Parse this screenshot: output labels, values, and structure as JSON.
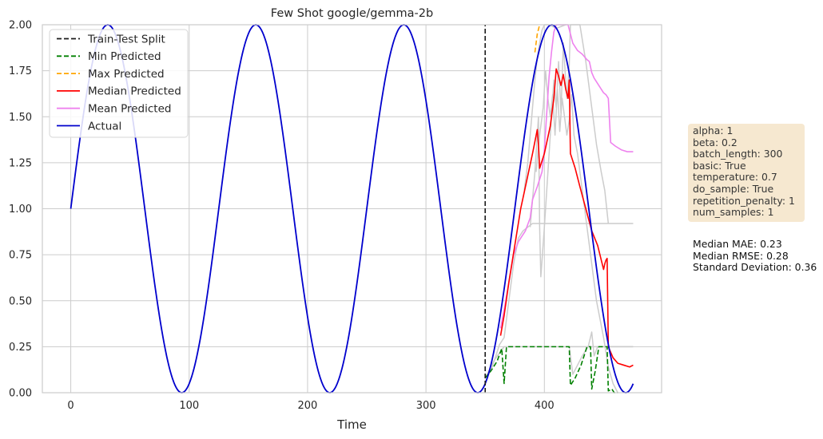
{
  "chart_data": {
    "type": "line",
    "title": "Few Shot google/gemma-2b",
    "xlabel": "Time",
    "ylabel": "",
    "xlim": [
      -24,
      499
    ],
    "ylim": [
      0.0,
      2.0
    ],
    "xticks": [
      0,
      100,
      200,
      300,
      400
    ],
    "yticks": [
      0.0,
      0.25,
      0.5,
      0.75,
      1.0,
      1.25,
      1.5,
      1.75,
      2.0
    ],
    "xtick_labels": [
      "0",
      "100",
      "200",
      "300",
      "400"
    ],
    "ytick_labels": [
      "0.00",
      "0.25",
      "0.50",
      "0.75",
      "1.00",
      "1.25",
      "1.50",
      "1.75",
      "2.00"
    ],
    "grid": true,
    "legend_position": "top-left",
    "train_test_split": 350,
    "actual": {
      "period": 125,
      "amplitude": 1,
      "offset": 1,
      "start": 0,
      "end": 475
    },
    "series": [
      {
        "name": "Train-Test Split",
        "color": "#1a1a1a",
        "style": "dashed",
        "points": [
          [
            350,
            0
          ],
          [
            350,
            2
          ]
        ]
      },
      {
        "name": "Min Predicted",
        "color": "#008000",
        "style": "dashed",
        "points": [
          [
            350,
            0.08
          ],
          [
            355,
            0.12
          ],
          [
            360,
            0.17
          ],
          [
            364,
            0.24
          ],
          [
            366,
            0.05
          ],
          [
            368,
            0.25
          ],
          [
            376,
            0.25
          ],
          [
            386,
            0.25
          ],
          [
            396,
            0.25
          ],
          [
            406,
            0.25
          ],
          [
            416,
            0.25
          ],
          [
            421,
            0.25
          ],
          [
            422,
            0.04
          ],
          [
            426,
            0.08
          ],
          [
            431,
            0.15
          ],
          [
            436,
            0.25
          ],
          [
            439,
            0.25
          ],
          [
            440,
            0.02
          ],
          [
            443,
            0.12
          ],
          [
            446,
            0.25
          ],
          [
            451,
            0.25
          ],
          [
            453,
            0.25
          ],
          [
            454,
            0.01
          ],
          [
            457,
            0.02
          ],
          [
            459,
            0.0
          ],
          [
            462,
            0.0
          ]
        ]
      },
      {
        "name": "Max Predicted",
        "color": "#ffa500",
        "style": "dashed",
        "points": [
          [
            392,
            1.85
          ],
          [
            394,
            1.95
          ],
          [
            396,
            2.0
          ]
        ]
      },
      {
        "name": "Median Predicted",
        "color": "#ff0000",
        "style": "solid",
        "points": [
          [
            363,
            0.31
          ],
          [
            366,
            0.42
          ],
          [
            370,
            0.6
          ],
          [
            375,
            0.8
          ],
          [
            380,
            1.0
          ],
          [
            385,
            1.15
          ],
          [
            390,
            1.3
          ],
          [
            394,
            1.43
          ],
          [
            395,
            1.35
          ],
          [
            396,
            1.22
          ],
          [
            400,
            1.3
          ],
          [
            405,
            1.45
          ],
          [
            408,
            1.6
          ],
          [
            410,
            1.76
          ],
          [
            412,
            1.72
          ],
          [
            414,
            1.67
          ],
          [
            416,
            1.73
          ],
          [
            418,
            1.65
          ],
          [
            420,
            1.6
          ],
          [
            421,
            1.7
          ],
          [
            422,
            1.3
          ],
          [
            426,
            1.22
          ],
          [
            430,
            1.12
          ],
          [
            435,
            1.0
          ],
          [
            440,
            0.88
          ],
          [
            445,
            0.8
          ],
          [
            450,
            0.67
          ],
          [
            451,
            0.7
          ],
          [
            452,
            0.72
          ],
          [
            453,
            0.73
          ],
          [
            454,
            0.25
          ],
          [
            458,
            0.19
          ],
          [
            462,
            0.16
          ],
          [
            467,
            0.15
          ],
          [
            472,
            0.14
          ],
          [
            475,
            0.15
          ]
        ]
      },
      {
        "name": "Mean Predicted",
        "color": "#ee82ee",
        "style": "solid",
        "points": [
          [
            363,
            0.35
          ],
          [
            366,
            0.45
          ],
          [
            370,
            0.6
          ],
          [
            374,
            0.75
          ],
          [
            378,
            0.82
          ],
          [
            384,
            0.88
          ],
          [
            388,
            0.95
          ],
          [
            390,
            1.05
          ],
          [
            394,
            1.12
          ],
          [
            398,
            1.2
          ],
          [
            400,
            1.32
          ],
          [
            402,
            1.52
          ],
          [
            404,
            1.72
          ],
          [
            406,
            1.85
          ],
          [
            408,
            1.96
          ],
          [
            410,
            2.0
          ],
          [
            420,
            2.0
          ],
          [
            424,
            1.9
          ],
          [
            428,
            1.86
          ],
          [
            432,
            1.84
          ],
          [
            436,
            1.81
          ],
          [
            438,
            1.8
          ],
          [
            440,
            1.74
          ],
          [
            442,
            1.71
          ],
          [
            446,
            1.67
          ],
          [
            450,
            1.63
          ],
          [
            452,
            1.62
          ],
          [
            454,
            1.6
          ],
          [
            456,
            1.36
          ],
          [
            460,
            1.34
          ],
          [
            465,
            1.32
          ],
          [
            470,
            1.31
          ],
          [
            475,
            1.31
          ]
        ]
      },
      {
        "name": "Actual",
        "color": "#0000cd",
        "style": "solid",
        "from_actual": true
      }
    ],
    "sample_series": [
      {
        "name": "",
        "color": "#cccccc",
        "points": [
          [
            350,
            0.06
          ],
          [
            356,
            0.14
          ],
          [
            362,
            0.26
          ],
          [
            366,
            0.3
          ],
          [
            370,
            0.5
          ],
          [
            374,
            0.7
          ],
          [
            378,
            0.84
          ],
          [
            382,
            0.88
          ],
          [
            386,
            0.9
          ],
          [
            390,
            0.92
          ],
          [
            400,
            0.92
          ],
          [
            420,
            0.92
          ],
          [
            440,
            0.92
          ],
          [
            460,
            0.92
          ],
          [
            475,
            0.92
          ]
        ]
      },
      {
        "name": "",
        "color": "#cccccc",
        "points": [
          [
            350,
            0.08
          ],
          [
            358,
            0.18
          ],
          [
            366,
            0.25
          ],
          [
            370,
            0.25
          ],
          [
            380,
            0.25
          ],
          [
            400,
            0.25
          ],
          [
            420,
            0.25
          ],
          [
            440,
            0.25
          ],
          [
            460,
            0.25
          ],
          [
            475,
            0.25
          ]
        ]
      },
      {
        "name": "",
        "color": "#cccccc",
        "points": [
          [
            388,
            0.9
          ],
          [
            392,
            1.2
          ],
          [
            395,
            1.5
          ],
          [
            396,
            0.9
          ],
          [
            397,
            0.63
          ],
          [
            400,
            0.9
          ],
          [
            403,
            1.2
          ],
          [
            406,
            1.5
          ],
          [
            408,
            1.7
          ],
          [
            410,
            1.55
          ],
          [
            412,
            1.8
          ],
          [
            414,
            1.52
          ],
          [
            416,
            1.9
          ],
          [
            419,
            1.6
          ],
          [
            421,
            1.78
          ],
          [
            422,
            2.0
          ],
          [
            430,
            2.0
          ],
          [
            435,
            1.8
          ],
          [
            440,
            1.55
          ],
          [
            444,
            1.35
          ],
          [
            448,
            1.2
          ],
          [
            451,
            1.1
          ],
          [
            454,
            0.92
          ]
        ]
      },
      {
        "name": "",
        "color": "#cccccc",
        "points": [
          [
            393,
            1.2
          ],
          [
            396,
            1.4
          ],
          [
            399,
            1.55
          ],
          [
            401,
            1.75
          ],
          [
            403,
            1.6
          ],
          [
            405,
            1.5
          ],
          [
            407,
            1.62
          ],
          [
            409,
            1.4
          ],
          [
            411,
            1.65
          ],
          [
            413,
            1.42
          ],
          [
            415,
            1.6
          ],
          [
            417,
            1.5
          ],
          [
            419,
            1.4
          ],
          [
            421,
            1.48
          ],
          [
            423,
            1.62
          ],
          [
            425,
            1.4
          ],
          [
            428,
            1.3
          ],
          [
            432,
            1.1
          ],
          [
            436,
            0.9
          ],
          [
            440,
            0.7
          ],
          [
            444,
            0.5
          ],
          [
            447,
            0.4
          ],
          [
            450,
            0.3
          ],
          [
            452,
            0.22
          ],
          [
            454,
            0.14
          ],
          [
            458,
            0.05
          ],
          [
            462,
            0.0
          ]
        ]
      },
      {
        "name": "",
        "color": "#cccccc",
        "points": [
          [
            421,
            0.25
          ],
          [
            424,
            0.1
          ],
          [
            428,
            0.15
          ],
          [
            432,
            0.2
          ],
          [
            437,
            0.25
          ],
          [
            440,
            0.33
          ],
          [
            442,
            0.2
          ],
          [
            445,
            0.25
          ],
          [
            450,
            0.25
          ],
          [
            455,
            0.25
          ],
          [
            460,
            0.25
          ],
          [
            470,
            0.25
          ],
          [
            475,
            0.25
          ]
        ]
      },
      {
        "name": "",
        "color": "#cccccc",
        "points": [
          [
            383,
            1.1
          ],
          [
            386,
            1.25
          ],
          [
            388,
            1.4
          ],
          [
            390,
            1.55
          ],
          [
            392,
            1.7
          ],
          [
            394,
            1.82
          ],
          [
            396,
            1.9
          ],
          [
            398,
            1.97
          ],
          [
            400,
            2.0
          ],
          [
            404,
            2.0
          ],
          [
            410,
            1.98
          ],
          [
            418,
            2.0
          ]
        ]
      }
    ]
  },
  "legend": {
    "items": [
      {
        "label": "Train-Test Split",
        "color": "#1a1a1a",
        "style": "dashed"
      },
      {
        "label": "Min Predicted",
        "color": "#008000",
        "style": "dashed"
      },
      {
        "label": "Max Predicted",
        "color": "#ffa500",
        "style": "dashed"
      },
      {
        "label": "Median Predicted",
        "color": "#ff0000",
        "style": "solid"
      },
      {
        "label": "Mean Predicted",
        "color": "#ee82ee",
        "style": "solid"
      },
      {
        "label": "Actual",
        "color": "#0000cd",
        "style": "solid"
      }
    ]
  },
  "params": {
    "lines": [
      "alpha: 1",
      "beta: 0.2",
      "batch_length: 300",
      "basic: True",
      "temperature: 0.7",
      "do_sample: True",
      "repetition_penalty: 1",
      "num_samples: 1"
    ]
  },
  "metrics": {
    "lines": [
      "Median MAE: 0.23",
      "Median RMSE: 0.28",
      "Standard Deviation: 0.36"
    ]
  }
}
